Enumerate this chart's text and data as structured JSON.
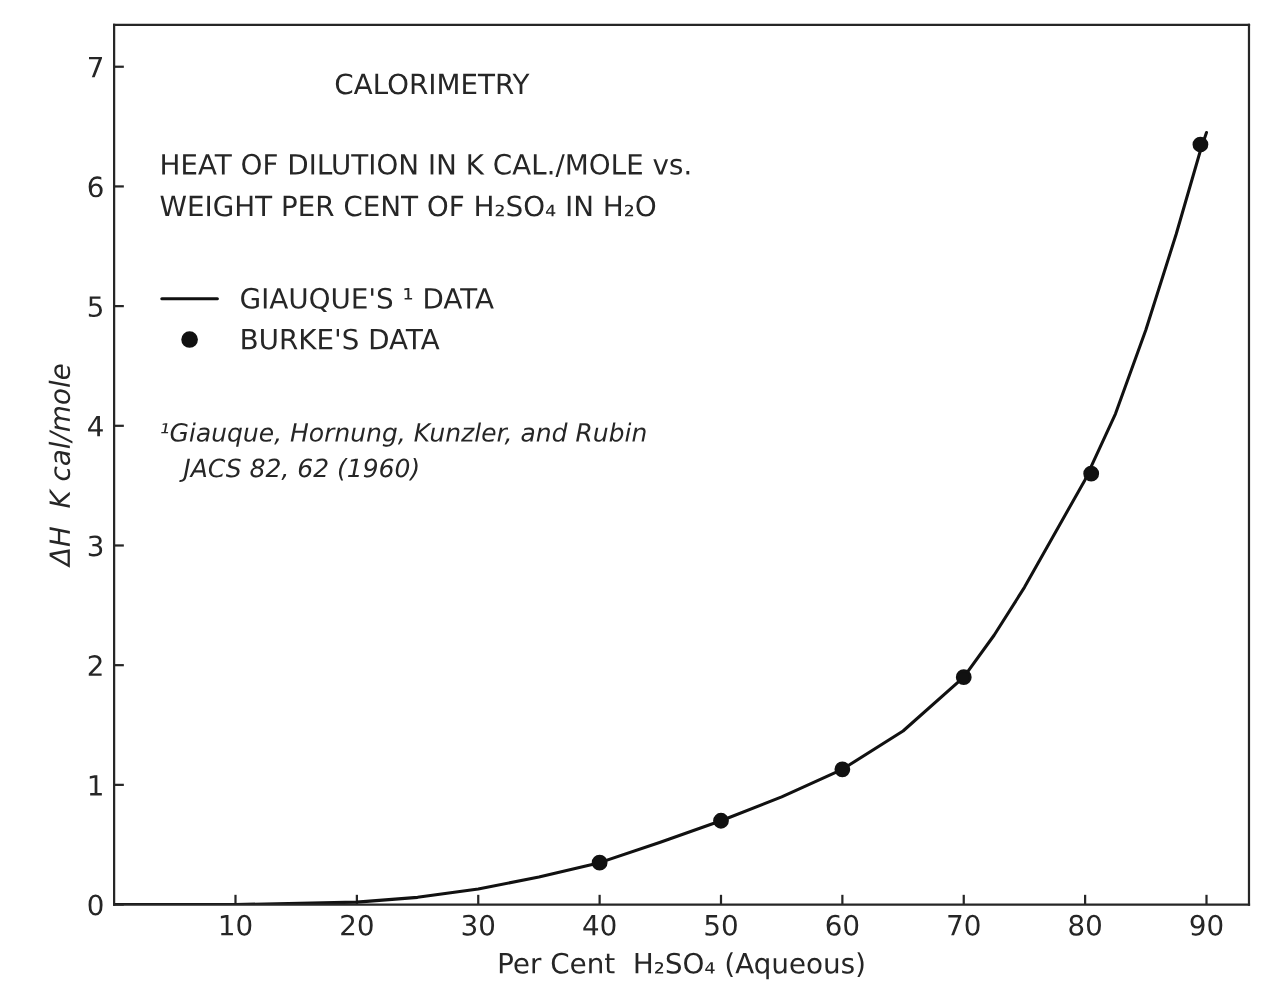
{
  "chart_data": {
    "type": "line",
    "title": "CALORIMETRY",
    "subtitle": "HEAT OF DILUTION IN K CAL./MOLE vs.\nWEIGHT PER CENT OF H₂SO₄ IN H₂O",
    "xlabel": "Per Cent  H₂SO₄ (Aqueous)",
    "ylabel": "ΔH  K cal/mole",
    "series": [
      {
        "name": "GIAUQUE'S ¹ DATA",
        "color": "#111111",
        "x": [
          0,
          10,
          20,
          25,
          30,
          35,
          40,
          45,
          50,
          55,
          60,
          65,
          70,
          72.5,
          75,
          77.5,
          80,
          82.5,
          85,
          87.5,
          89.5,
          90
        ],
        "values": [
          0,
          0,
          0.02,
          0.06,
          0.13,
          0.23,
          0.35,
          0.52,
          0.7,
          0.9,
          1.13,
          1.45,
          1.9,
          2.25,
          2.65,
          3.1,
          3.55,
          4.1,
          4.8,
          5.6,
          6.3,
          6.45
        ]
      },
      {
        "name": "BURKE'S DATA",
        "type": "scatter",
        "color": "#111111",
        "marker": "circle",
        "x": [
          40,
          50,
          60,
          70,
          80.5,
          89.5
        ],
        "values": [
          0.35,
          0.7,
          1.13,
          1.9,
          3.6,
          6.35
        ]
      }
    ],
    "annotations": [
      "¹Giauque, Hornung, Kunzler, and Rubin\n   JACS 82, 62 (1960)"
    ],
    "xlim": [
      0,
      93.5
    ],
    "xticks": [
      10,
      20,
      30,
      40,
      50,
      60,
      70,
      80,
      90
    ],
    "ylim": [
      0,
      7.35
    ],
    "yticks": [
      0,
      1,
      2,
      3,
      4,
      5,
      6,
      7
    ],
    "grid": false,
    "legend": "top left"
  }
}
